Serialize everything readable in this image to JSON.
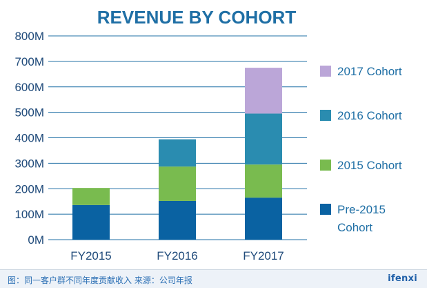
{
  "chart_data": {
    "type": "bar",
    "stacked": true,
    "title": "REVENUE BY COHORT",
    "xlabel": "",
    "ylabel": "",
    "categories": [
      "FY2015",
      "FY2016",
      "FY2017"
    ],
    "ylim": [
      0,
      800
    ],
    "yticks": [
      0,
      100,
      200,
      300,
      400,
      500,
      600,
      700,
      800
    ],
    "ytick_labels": [
      "0M",
      "100M",
      "200M",
      "300M",
      "400M",
      "500M",
      "600M",
      "700M",
      "800M"
    ],
    "grid": true,
    "legend_position": "right",
    "series": [
      {
        "name": "Pre-2015 Cohort",
        "color": "#0a62a2",
        "values": [
          136,
          152,
          165
        ]
      },
      {
        "name": "2015 Cohort",
        "color": "#79bb4f",
        "values": [
          67,
          135,
          130
        ]
      },
      {
        "name": "2016 Cohort",
        "color": "#2a8cb0",
        "values": [
          0,
          107,
          200
        ]
      },
      {
        "name": "2017 Cohort",
        "color": "#bba6d8",
        "values": [
          0,
          0,
          180
        ]
      }
    ],
    "legend_order": [
      3,
      2,
      1,
      0
    ]
  },
  "colors": {
    "title": "#1f6fa5",
    "axis_text": "#1f4a7a",
    "label_text": "#1f6fa5",
    "grid": "#1f6fa5"
  },
  "footer": {
    "source": "图：同一客户群不同年度贡献收入    来源：公司年报",
    "logo": "ifenxi"
  }
}
